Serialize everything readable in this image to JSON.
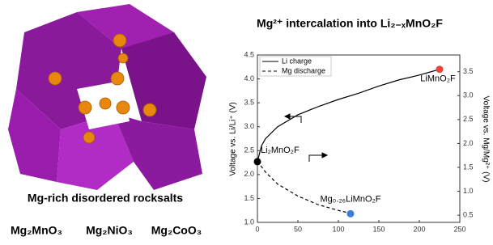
{
  "left_panel": {
    "caption": "Mg-rich disordered rocksalts",
    "compounds": [
      "Mg₂MnO₃",
      "Mg₂NiO₃",
      "Mg₂CoO₃"
    ]
  },
  "chart_data": {
    "type": "line",
    "title": "Mg²⁺ intercalation into Li₂₋ₓMnO₂F",
    "y_label": "Voltage vs. Li/Li⁺ (V)",
    "y2_label": "Voltage vs. Mg/Mg²⁺ (V)",
    "xlim": [
      0,
      250
    ],
    "xticks": [
      0,
      50,
      100,
      150,
      200,
      250
    ],
    "ylim": [
      1,
      4.5
    ],
    "yticks": [
      {
        "value": 1,
        "label": "1.0"
      },
      1.5,
      {
        "value": 2,
        "label": "2.0"
      },
      2.5,
      {
        "value": 3,
        "label": "3.0"
      },
      3.5,
      {
        "value": 4,
        "label": "4.0"
      },
      4.5
    ],
    "y2lim": [
      0.35,
      3.85
    ],
    "y2ticks": [
      0.5,
      {
        "value": 1,
        "label": "1.0"
      },
      1.5,
      {
        "value": 2,
        "label": "2.0"
      },
      2.5,
      {
        "value": 3,
        "label": "3.0"
      },
      3.5
    ],
    "legend": "upper left",
    "series": [
      {
        "name": "Li charge",
        "color": "#000000",
        "dash": false,
        "x": [
          0,
          5,
          10,
          25,
          50,
          75,
          100,
          125,
          150,
          175,
          200,
          225
        ],
        "values": [
          2.27,
          2.6,
          2.75,
          3.0,
          3.25,
          3.42,
          3.57,
          3.7,
          3.85,
          3.98,
          4.08,
          4.2
        ]
      },
      {
        "name": "Mg discharge",
        "color": "#000000",
        "dash": true,
        "axis": "y2",
        "x": [
          0,
          10,
          25,
          50,
          75,
          100,
          115
        ],
        "values": [
          1.63,
          1.4,
          1.15,
          0.9,
          0.72,
          0.6,
          0.54
        ]
      }
    ],
    "annotations": [
      {
        "text": "Li₂MnO₂F",
        "x": 0,
        "y": 2.27,
        "color": "#000000"
      },
      {
        "text": "LiMnO₂F",
        "x": 225,
        "y": 4.2,
        "color": "#e8463c"
      },
      {
        "text": "Mg₀.₂₆LiMnO₂F",
        "x": 115,
        "y": 1.18,
        "color": "#3a7de0"
      }
    ]
  }
}
